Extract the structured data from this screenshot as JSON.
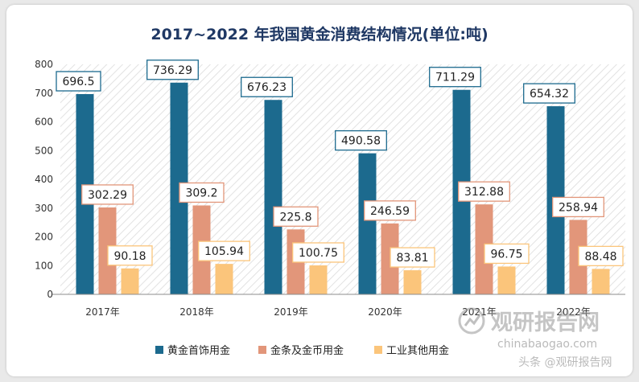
{
  "chart_data": {
    "type": "bar",
    "title": "2017~2022 年我国黄金消费结构情况(单位:吨)",
    "categories": [
      "2017年",
      "2018年",
      "2019年",
      "2020年",
      "2021年",
      "2022年"
    ],
    "series": [
      {
        "name": "黄金首饰用金",
        "color": "#1c6a8e",
        "values": [
          696.5,
          736.29,
          676.23,
          490.58,
          711.29,
          654.32
        ],
        "labels": [
          "696.5",
          "736.29",
          "676.23",
          "490.58",
          "711.29",
          "654.32"
        ]
      },
      {
        "name": "金条及金币用金",
        "color": "#e2967a",
        "values": [
          302.29,
          309.2,
          225.8,
          246.59,
          312.88,
          258.94
        ],
        "labels": [
          "302.29",
          "309.2",
          "225.8",
          "246.59",
          "312.88",
          "258.94"
        ]
      },
      {
        "name": "工业其他用金",
        "color": "#fbc57b",
        "values": [
          90.18,
          105.94,
          100.75,
          83.81,
          96.75,
          88.48
        ],
        "labels": [
          "90.18",
          "105.94",
          "100.75",
          "83.81",
          "96.75",
          "88.48"
        ]
      }
    ],
    "ylim": [
      0,
      800
    ],
    "yticks": [
      "0",
      "100",
      "200",
      "300",
      "400",
      "500",
      "600",
      "700",
      "800"
    ],
    "grid": false,
    "legend": "bottom"
  },
  "watermark": {
    "brand": "观研报告网",
    "url": "chinabaogao.com",
    "social": "头条 @观研报告网"
  }
}
